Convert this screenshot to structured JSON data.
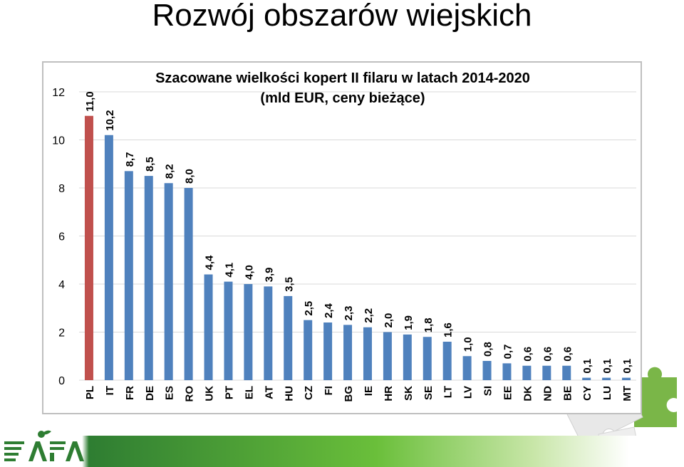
{
  "slide": {
    "title": "Rozwój obszarów wiejskich"
  },
  "chart_data": {
    "type": "bar",
    "title": "Szacowane wielkości kopert II filaru w latach 2014-2020",
    "subtitle": "(mld EUR, ceny bieżące)",
    "categories": [
      "PL",
      "IT",
      "FR",
      "DE",
      "ES",
      "RO",
      "UK",
      "PT",
      "EL",
      "AT",
      "HU",
      "CZ",
      "FI",
      "BG",
      "IE",
      "HR",
      "SK",
      "SE",
      "LT",
      "LV",
      "SI",
      "EE",
      "DK",
      "ND",
      "BE",
      "CY",
      "LU",
      "MT"
    ],
    "values": [
      11.0,
      10.2,
      8.7,
      8.5,
      8.2,
      8.0,
      4.4,
      4.1,
      4.0,
      3.9,
      3.5,
      2.5,
      2.4,
      2.3,
      2.2,
      2.0,
      1.9,
      1.8,
      1.6,
      1.0,
      0.8,
      0.7,
      0.6,
      0.6,
      0.6,
      0.1,
      0.1,
      0.1
    ],
    "value_labels": [
      "11,0",
      "10,2",
      "8,7",
      "8,5",
      "8,2",
      "8,0",
      "4,4",
      "4,1",
      "4,0",
      "3,9",
      "3,5",
      "2,5",
      "2,4",
      "2,3",
      "2,2",
      "2,0",
      "1,9",
      "1,8",
      "1,6",
      "1,0",
      "0,8",
      "0,7",
      "0,6",
      "0,6",
      "0,6",
      "0,1",
      "0,1",
      "0,1"
    ],
    "y_ticks": [
      "0",
      "2",
      "4",
      "6",
      "8",
      "10",
      "12"
    ],
    "ylim": [
      0,
      12
    ],
    "grid": true,
    "colors": {
      "highlight": "#c0504d",
      "bar": "#4f81bd",
      "grid": "#d9d9d9"
    },
    "highlight_category": "PL"
  },
  "decor": {
    "logo_text": "FAPA",
    "puzzle_color": "#7ab648"
  }
}
